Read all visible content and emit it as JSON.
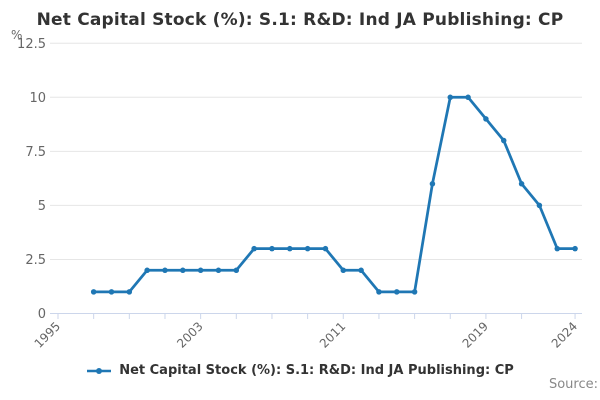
{
  "title": "Net Capital Stock (%): S.1: R&D: Ind JA Publishing: CP",
  "y_axis": {
    "unit": "%",
    "ticks": [
      0,
      2.5,
      5,
      7.5,
      10,
      12.5
    ],
    "min": 0,
    "max": 12.5
  },
  "x_axis": {
    "ticks": [
      1995,
      1997,
      1999,
      2001,
      2003,
      2005,
      2007,
      2009,
      2011,
      2013,
      2015,
      2017,
      2019,
      2021,
      2024
    ],
    "labeled_ticks": [
      1995,
      2003,
      2011,
      2019,
      2024
    ],
    "min": 1995,
    "max": 2024
  },
  "legend": {
    "label": "Net Capital Stock (%): S.1: R&D: Ind JA Publishing: CP"
  },
  "footer": {
    "source": "Source:"
  },
  "colors": {
    "line": "#1f77b4",
    "grid": "#e6e6e6",
    "axis": "#ccd6eb",
    "tick_label": "#666666",
    "title": "#333333",
    "source": "#888888"
  },
  "chart_data": {
    "type": "line",
    "title": "Net Capital Stock (%): S.1: R&D: Ind JA Publishing: CP",
    "xlabel": "",
    "ylabel": "%",
    "series_name": "Net Capital Stock (%): S.1: R&D: Ind JA Publishing: CP",
    "x": [
      1997,
      1998,
      1999,
      2000,
      2001,
      2002,
      2003,
      2004,
      2005,
      2006,
      2007,
      2008,
      2009,
      2010,
      2011,
      2012,
      2013,
      2014,
      2015,
      2016,
      2017,
      2018,
      2019,
      2020,
      2021,
      2022,
      2023,
      2024
    ],
    "values": [
      1,
      1,
      1,
      2,
      2,
      2,
      2,
      2,
      2,
      3,
      3,
      3,
      3,
      3,
      2,
      2,
      1,
      1,
      1,
      6,
      10,
      10,
      9,
      8,
      6,
      5,
      3,
      3
    ],
    "xlim": [
      1995,
      2024
    ],
    "ylim": [
      0,
      12.5
    ],
    "grid": true,
    "markers": true,
    "legend_position": "bottom"
  }
}
